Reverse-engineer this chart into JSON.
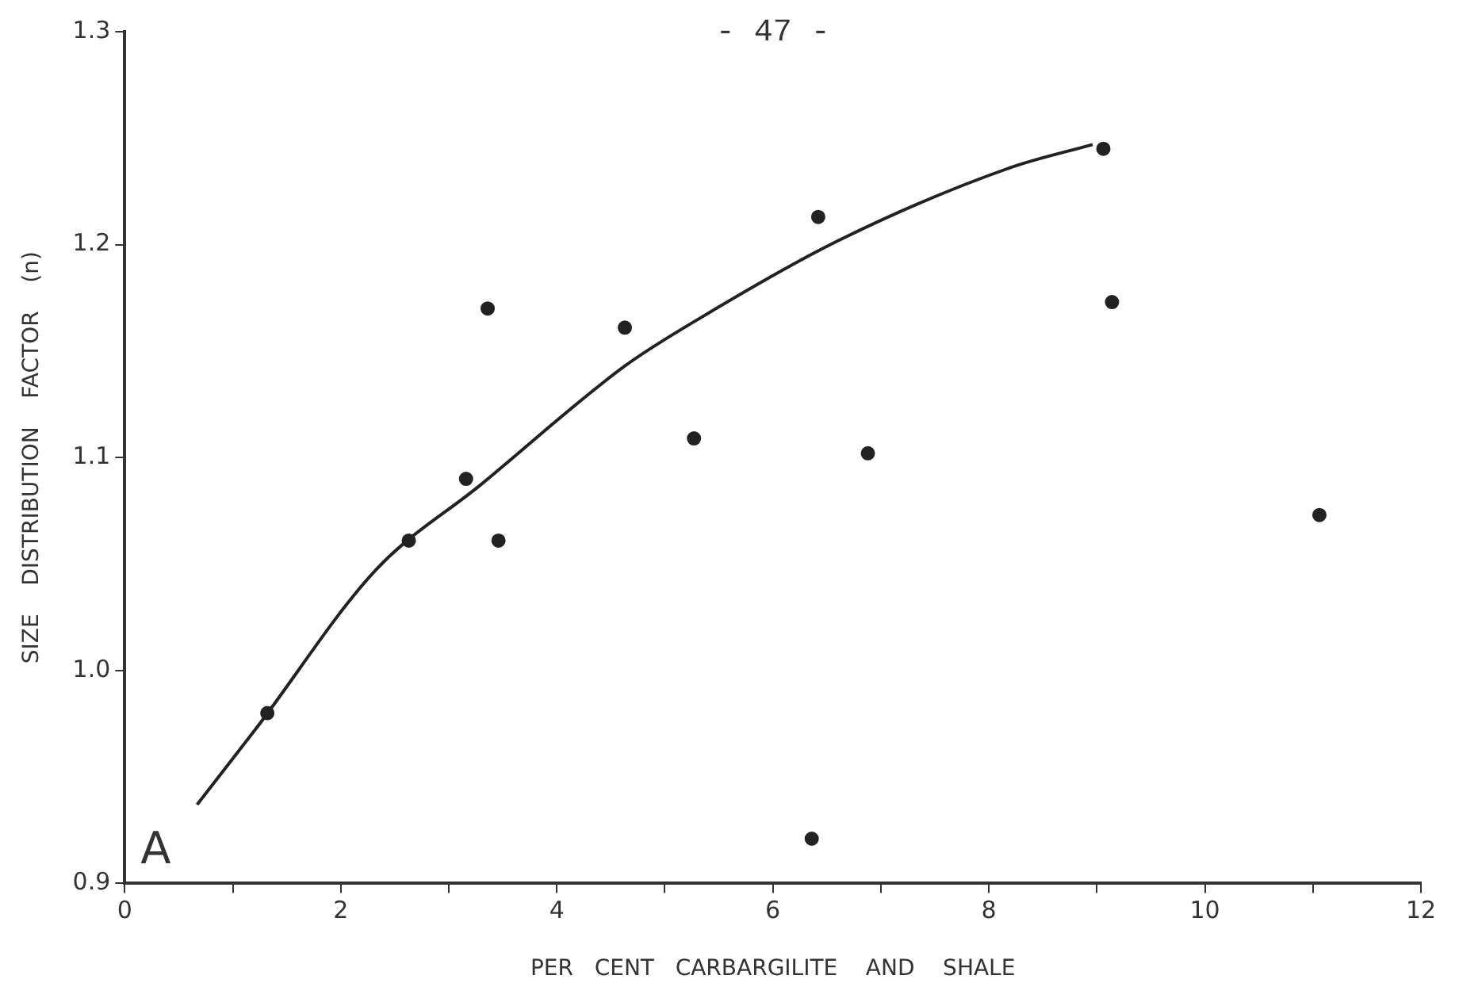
{
  "chart_data": {
    "type": "scatter",
    "xlabel": "PER   CENT   CARBARGILITE    AND    SHALE",
    "ylabel": "SIZE    DISTRIBUTION    FACTOR    (n)",
    "annotations": [
      "- 47 -",
      "A"
    ],
    "xlim": [
      0,
      12
    ],
    "ylim": [
      0.9,
      1.3
    ],
    "xticks": [
      0,
      {
        "value": 1,
        "label": null
      },
      2,
      {
        "value": 3,
        "label": null
      },
      4,
      {
        "value": 5,
        "label": null
      },
      6,
      {
        "value": 7,
        "label": null
      },
      8,
      {
        "value": 9,
        "label": null
      },
      10,
      {
        "value": 11,
        "label": null
      },
      12
    ],
    "yticks": [
      0.9,
      {
        "value": 1,
        "label": "1.0"
      },
      1.1,
      1.2,
      1.3
    ],
    "grid": false,
    "legend": false,
    "series": [
      {
        "color": "#222222",
        "marker": "circle",
        "x": [
          1.32,
          2.63,
          3.16,
          3.36,
          3.46,
          4.63,
          5.27,
          6.36,
          6.42,
          6.88,
          9.06,
          9.14,
          11.06
        ],
        "values": [
          0.98,
          1.061,
          1.09,
          1.17,
          1.061,
          1.161,
          1.109,
          0.921,
          1.213,
          1.102,
          1.245,
          1.173,
          1.073
        ]
      },
      {
        "type": "line",
        "color": "#222222",
        "marker": "none",
        "line_style": "solid",
        "x": [
          0.67,
          1.22,
          2.32,
          3.29,
          4.63,
          5.31,
          6.61,
          8.19,
          8.96
        ],
        "values": [
          0.937,
          0.973,
          1.047,
          1.087,
          1.143,
          1.165,
          1.202,
          1.236,
          1.247
        ]
      }
    ]
  }
}
